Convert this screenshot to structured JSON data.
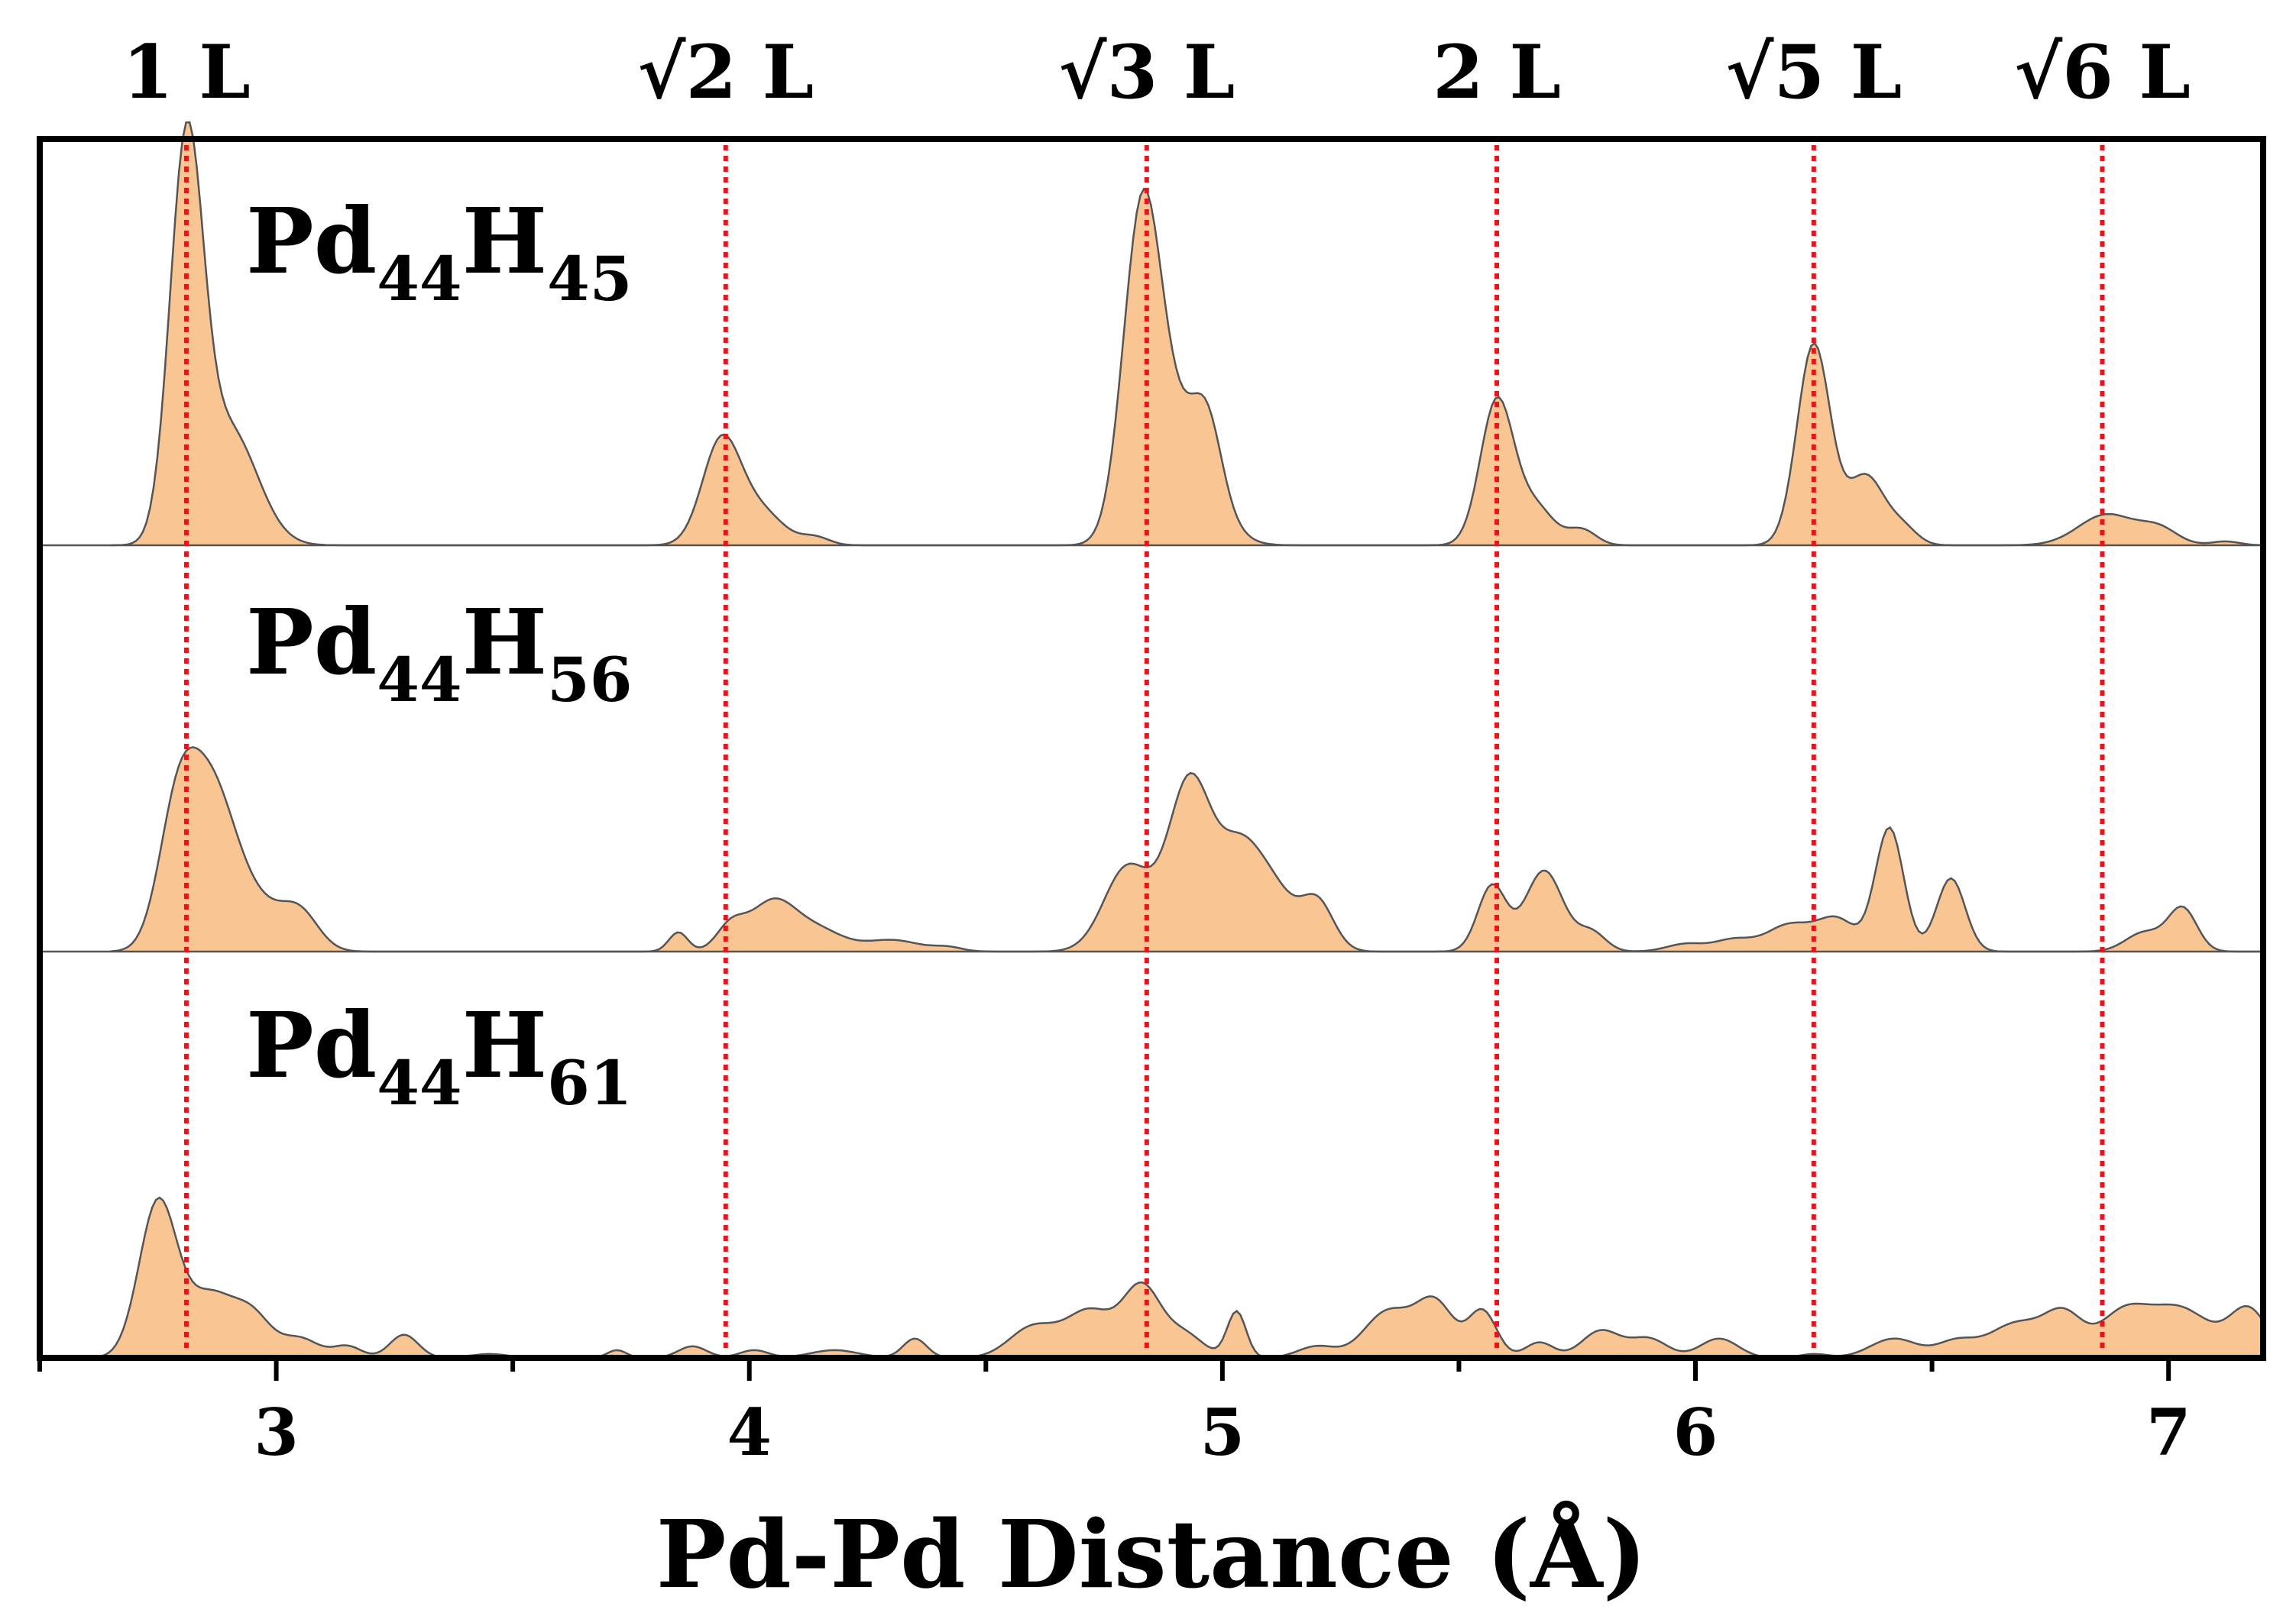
{
  "chart_data": {
    "type": "area",
    "xlabel": "Pd-Pd Distance (Å)",
    "ylabel": "",
    "xlim": [
      2.5,
      7.2
    ],
    "x_ticks": [
      3,
      4,
      5,
      6,
      7
    ],
    "x_tick_labels": [
      "3",
      "4",
      "5",
      "6",
      "7"
    ],
    "minor_tick_step": 0.5,
    "grid": false,
    "fill_color": "#F9C592",
    "line_color": "#555555",
    "reference_line_color": "#E8141C",
    "reference_lines": [
      {
        "label_prefix": "",
        "label_number": "1",
        "label_suffix": " L",
        "x": 2.81
      },
      {
        "label_prefix": "√",
        "label_number": "2",
        "label_suffix": " L",
        "x": 3.95
      },
      {
        "label_prefix": "√",
        "label_number": "3",
        "label_suffix": " L",
        "x": 4.84
      },
      {
        "label_prefix": "",
        "label_number": "2",
        "label_suffix": " L",
        "x": 5.58
      },
      {
        "label_prefix": "√",
        "label_number": "5",
        "label_suffix": " L",
        "x": 6.25
      },
      {
        "label_prefix": "√",
        "label_number": "6",
        "label_suffix": " L",
        "x": 6.86
      }
    ],
    "panels": [
      {
        "name": "Pd44H45",
        "label_main": "Pd",
        "label_sub1": "44",
        "label_main2": "H",
        "label_sub2": "45",
        "x_range": [
          2.65,
          7.2
        ],
        "peaks": [
          [
            2.81,
            1.0,
            0.035
          ],
          [
            2.9,
            0.3,
            0.06
          ],
          [
            3.94,
            0.26,
            0.04
          ],
          [
            4.02,
            0.09,
            0.05
          ],
          [
            4.14,
            0.02,
            0.03
          ],
          [
            4.83,
            0.82,
            0.04
          ],
          [
            4.92,
            0.3,
            0.06
          ],
          [
            4.97,
            0.15,
            0.03
          ],
          [
            5.58,
            0.37,
            0.035
          ],
          [
            5.66,
            0.1,
            0.04
          ],
          [
            5.76,
            0.04,
            0.03
          ],
          [
            6.25,
            0.52,
            0.035
          ],
          [
            6.36,
            0.18,
            0.04
          ],
          [
            6.44,
            0.04,
            0.03
          ],
          [
            6.87,
            0.08,
            0.06
          ],
          [
            6.98,
            0.04,
            0.04
          ],
          [
            7.12,
            0.01,
            0.03
          ]
        ]
      },
      {
        "name": "Pd44H56",
        "label_main": "Pd",
        "label_sub1": "44",
        "label_main2": "H",
        "label_sub2": "56",
        "x_range": [
          2.65,
          7.2
        ],
        "peaks": [
          [
            2.79,
            0.32,
            0.04
          ],
          [
            2.86,
            0.38,
            0.05
          ],
          [
            2.95,
            0.12,
            0.06
          ],
          [
            3.05,
            0.09,
            0.04
          ],
          [
            3.85,
            0.05,
            0.02
          ],
          [
            3.96,
            0.06,
            0.03
          ],
          [
            4.05,
            0.13,
            0.05
          ],
          [
            4.15,
            0.05,
            0.05
          ],
          [
            4.3,
            0.03,
            0.06
          ],
          [
            4.42,
            0.01,
            0.03
          ],
          [
            4.8,
            0.22,
            0.05
          ],
          [
            4.93,
            0.43,
            0.045
          ],
          [
            5.04,
            0.27,
            0.05
          ],
          [
            5.12,
            0.1,
            0.04
          ],
          [
            5.2,
            0.13,
            0.035
          ],
          [
            5.57,
            0.17,
            0.03
          ],
          [
            5.68,
            0.21,
            0.04
          ],
          [
            5.78,
            0.05,
            0.03
          ],
          [
            5.98,
            0.02,
            0.04
          ],
          [
            6.08,
            0.03,
            0.04
          ],
          [
            6.2,
            0.07,
            0.05
          ],
          [
            6.3,
            0.08,
            0.04
          ],
          [
            6.41,
            0.32,
            0.03
          ],
          [
            6.54,
            0.19,
            0.03
          ],
          [
            6.95,
            0.05,
            0.04
          ],
          [
            7.03,
            0.11,
            0.03
          ]
        ]
      },
      {
        "name": "Pd44H61",
        "label_main": "Pd",
        "label_sub1": "44",
        "label_main2": "H",
        "label_sub2": "61",
        "x_range": [
          2.6,
          7.2
        ],
        "peaks": [
          [
            2.75,
            0.4,
            0.04
          ],
          [
            2.86,
            0.16,
            0.05
          ],
          [
            2.95,
            0.1,
            0.04
          ],
          [
            3.05,
            0.05,
            0.04
          ],
          [
            3.15,
            0.03,
            0.03
          ],
          [
            3.27,
            0.06,
            0.03
          ],
          [
            3.45,
            0.01,
            0.04
          ],
          [
            3.72,
            0.02,
            0.02
          ],
          [
            3.88,
            0.03,
            0.03
          ],
          [
            4.01,
            0.02,
            0.03
          ],
          [
            4.18,
            0.02,
            0.05
          ],
          [
            4.35,
            0.05,
            0.025
          ],
          [
            4.6,
            0.08,
            0.05
          ],
          [
            4.72,
            0.12,
            0.05
          ],
          [
            4.83,
            0.18,
            0.04
          ],
          [
            4.92,
            0.06,
            0.04
          ],
          [
            5.03,
            0.12,
            0.02
          ],
          [
            5.2,
            0.03,
            0.04
          ],
          [
            5.35,
            0.12,
            0.05
          ],
          [
            5.45,
            0.14,
            0.04
          ],
          [
            5.55,
            0.12,
            0.03
          ],
          [
            5.67,
            0.04,
            0.03
          ],
          [
            5.8,
            0.07,
            0.04
          ],
          [
            5.9,
            0.05,
            0.04
          ],
          [
            6.05,
            0.05,
            0.04
          ],
          [
            6.25,
            0.01,
            0.03
          ],
          [
            6.42,
            0.05,
            0.05
          ],
          [
            6.55,
            0.04,
            0.04
          ],
          [
            6.68,
            0.09,
            0.06
          ],
          [
            6.78,
            0.1,
            0.04
          ],
          [
            6.9,
            0.1,
            0.05
          ],
          [
            7.02,
            0.13,
            0.07
          ],
          [
            7.17,
            0.12,
            0.04
          ]
        ]
      }
    ]
  }
}
